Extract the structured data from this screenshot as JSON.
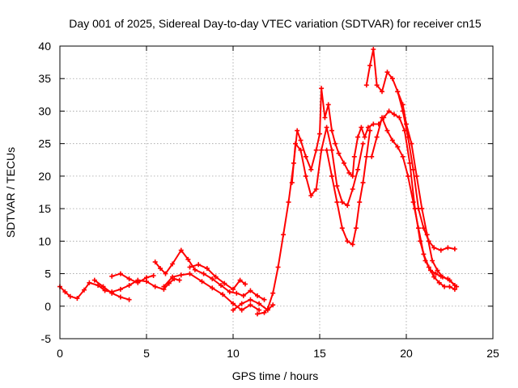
{
  "chart_data": {
    "type": "scatter",
    "title": "Day 001 of 2025, Sidereal Day-to-day VTEC variation (SDTVAR) for receiver cn15",
    "xlabel": "GPS time / hours",
    "ylabel": "SDTVAR / TECUs",
    "xlim": [
      0,
      25
    ],
    "ylim": [
      -5,
      40
    ],
    "xticks": [
      0,
      5,
      10,
      15,
      20,
      25
    ],
    "yticks": [
      -5,
      0,
      5,
      10,
      15,
      20,
      25,
      30,
      35,
      40
    ],
    "grid": true,
    "marker": "plus",
    "color": "#ff0000",
    "series": [
      {
        "name": "trace-a",
        "points": [
          [
            0,
            3
          ],
          [
            0.3,
            2.2
          ],
          [
            0.6,
            1.5
          ],
          [
            1.0,
            1.2
          ],
          [
            1.4,
            2.5
          ],
          [
            1.7,
            3.6
          ],
          [
            2.2,
            3.2
          ],
          [
            2.6,
            2.4
          ],
          [
            3.0,
            2.2
          ],
          [
            3.5,
            2.6
          ],
          [
            4.0,
            3.2
          ],
          [
            4.5,
            4.0
          ],
          [
            5.0,
            3.8
          ],
          [
            5.5,
            3.0
          ],
          [
            6.0,
            2.6
          ],
          [
            6.3,
            3.5
          ],
          [
            6.6,
            4.2
          ],
          [
            6.9,
            4.0
          ]
        ]
      },
      {
        "name": "trace-b",
        "points": [
          [
            2.0,
            4.0
          ],
          [
            2.5,
            3.0
          ],
          [
            3.0,
            2.0
          ],
          [
            3.5,
            1.4
          ],
          [
            4.0,
            1.0
          ]
        ]
      },
      {
        "name": "trace-c",
        "points": [
          [
            3.0,
            4.6
          ],
          [
            3.5,
            5.0
          ],
          [
            4.0,
            4.2
          ],
          [
            4.5,
            3.6
          ],
          [
            5.0,
            4.4
          ],
          [
            5.4,
            4.7
          ]
        ]
      },
      {
        "name": "trace-d",
        "points": [
          [
            5.5,
            6.8
          ],
          [
            5.8,
            5.8
          ],
          [
            6.1,
            5.0
          ],
          [
            6.5,
            6.5
          ],
          [
            7.0,
            8.6
          ],
          [
            7.4,
            7.2
          ],
          [
            7.8,
            5.6
          ],
          [
            8.3,
            5.0
          ],
          [
            8.8,
            4.2
          ],
          [
            9.3,
            3.2
          ],
          [
            9.8,
            2.2
          ],
          [
            10.2,
            2.0
          ],
          [
            10.6,
            1.6
          ],
          [
            11.0,
            2.4
          ],
          [
            11.4,
            1.6
          ],
          [
            11.8,
            1.0
          ]
        ]
      },
      {
        "name": "trace-e",
        "points": [
          [
            7.5,
            6.0
          ],
          [
            8.0,
            6.4
          ],
          [
            8.5,
            5.8
          ],
          [
            9.0,
            4.5
          ],
          [
            9.5,
            3.5
          ],
          [
            10.0,
            2.6
          ],
          [
            10.4,
            4.0
          ],
          [
            10.7,
            3.4
          ]
        ]
      },
      {
        "name": "trace-f",
        "points": [
          [
            6.0,
            3.0
          ],
          [
            6.5,
            4.5
          ],
          [
            7.0,
            4.8
          ],
          [
            7.5,
            5.0
          ],
          [
            8.2,
            3.8
          ],
          [
            8.8,
            2.8
          ],
          [
            9.4,
            1.8
          ],
          [
            10.0,
            0.4
          ],
          [
            10.5,
            -0.6
          ],
          [
            11.0,
            0.2
          ],
          [
            11.5,
            -0.6
          ]
        ]
      },
      {
        "name": "trace-g",
        "points": [
          [
            10.0,
            -0.6
          ],
          [
            10.5,
            0.4
          ],
          [
            11.0,
            1.0
          ],
          [
            11.5,
            0.4
          ],
          [
            12.0,
            -0.6
          ],
          [
            12.3,
            0.2
          ]
        ]
      },
      {
        "name": "trace-h",
        "points": [
          [
            11.4,
            -1.2
          ],
          [
            11.8,
            -1.0
          ],
          [
            12.0,
            -0.4
          ],
          [
            12.3,
            2.0
          ],
          [
            12.6,
            6.0
          ],
          [
            12.9,
            11.0
          ],
          [
            13.2,
            16.0
          ],
          [
            13.5,
            22.0
          ],
          [
            13.7,
            27.0
          ],
          [
            13.9,
            25.5
          ],
          [
            14.2,
            23.0
          ],
          [
            14.5,
            21.0
          ],
          [
            14.8,
            24.0
          ],
          [
            15.0,
            26.5
          ],
          [
            15.1,
            33.5
          ],
          [
            15.3,
            29.0
          ],
          [
            15.5,
            31.0
          ],
          [
            15.7,
            27.0
          ],
          [
            15.9,
            25.0
          ],
          [
            16.1,
            23.5
          ],
          [
            16.4,
            22.0
          ],
          [
            16.7,
            20.5
          ],
          [
            16.9,
            20.0
          ],
          [
            17.0,
            23.0
          ],
          [
            17.2,
            26.0
          ],
          [
            17.4,
            27.5
          ],
          [
            17.6,
            26.0
          ],
          [
            17.8,
            27.5
          ],
          [
            18.1,
            28.0
          ],
          [
            18.4,
            28.0
          ],
          [
            18.7,
            29.0
          ],
          [
            19.0,
            30.0
          ],
          [
            19.3,
            29.5
          ],
          [
            19.6,
            29.0
          ],
          [
            19.9,
            27.0
          ],
          [
            20.2,
            22.0
          ],
          [
            20.5,
            15.0
          ],
          [
            20.8,
            10.0
          ],
          [
            21.1,
            7.0
          ],
          [
            21.4,
            5.5
          ],
          [
            21.7,
            5.0
          ],
          [
            22.0,
            4.6
          ],
          [
            22.4,
            4.2
          ],
          [
            22.8,
            3.2
          ]
        ]
      },
      {
        "name": "trace-i",
        "points": [
          [
            13.4,
            19.0
          ],
          [
            13.6,
            25.0
          ],
          [
            13.9,
            24.0
          ],
          [
            14.2,
            20.0
          ],
          [
            14.5,
            17.0
          ],
          [
            14.8,
            18.0
          ],
          [
            15.1,
            24.0
          ],
          [
            15.4,
            27.5
          ],
          [
            15.7,
            24.0
          ],
          [
            16.0,
            18.5
          ],
          [
            16.3,
            16.0
          ],
          [
            16.6,
            15.5
          ],
          [
            16.9,
            18.0
          ],
          [
            17.2,
            21.0
          ],
          [
            17.5,
            25.0
          ]
        ]
      },
      {
        "name": "trace-j",
        "points": [
          [
            15.4,
            24.0
          ],
          [
            15.7,
            20.0
          ],
          [
            16.0,
            16.0
          ],
          [
            16.3,
            12.0
          ],
          [
            16.6,
            10.0
          ],
          [
            16.9,
            9.5
          ],
          [
            17.1,
            12.0
          ],
          [
            17.3,
            16.0
          ],
          [
            17.5,
            19.0
          ],
          [
            17.7,
            23.0
          ],
          [
            17.9,
            27.0
          ]
        ]
      },
      {
        "name": "trace-k",
        "points": [
          [
            17.7,
            34.0
          ],
          [
            17.9,
            37.0
          ],
          [
            18.1,
            39.5
          ],
          [
            18.3,
            34.0
          ],
          [
            18.6,
            33.0
          ],
          [
            18.9,
            36.0
          ],
          [
            19.2,
            35.0
          ],
          [
            19.5,
            33.0
          ],
          [
            19.8,
            30.0
          ],
          [
            20.1,
            26.0
          ],
          [
            20.4,
            21.0
          ],
          [
            20.7,
            15.0
          ],
          [
            21.0,
            12.0
          ],
          [
            21.3,
            10.0
          ],
          [
            21.6,
            9.0
          ],
          [
            22.0,
            8.6
          ],
          [
            22.4,
            9.0
          ],
          [
            22.8,
            8.8
          ]
        ]
      },
      {
        "name": "trace-l",
        "points": [
          [
            18.0,
            23.0
          ],
          [
            18.3,
            26.0
          ],
          [
            18.6,
            29.0
          ],
          [
            18.9,
            27.0
          ],
          [
            19.2,
            25.5
          ],
          [
            19.5,
            24.5
          ],
          [
            19.8,
            23.0
          ],
          [
            20.1,
            20.0
          ],
          [
            20.4,
            16.0
          ],
          [
            20.7,
            12.0
          ],
          [
            21.0,
            8.0
          ],
          [
            21.3,
            6.0
          ],
          [
            21.6,
            4.5
          ],
          [
            21.9,
            3.6
          ],
          [
            22.2,
            3.0
          ],
          [
            22.5,
            3.0
          ],
          [
            22.8,
            2.6
          ]
        ]
      },
      {
        "name": "trace-m",
        "points": [
          [
            19.5,
            33.0
          ],
          [
            19.8,
            31.0
          ],
          [
            20.0,
            28.0
          ],
          [
            20.3,
            25.0
          ],
          [
            20.6,
            20.0
          ],
          [
            20.9,
            15.0
          ],
          [
            21.2,
            11.0
          ],
          [
            21.5,
            7.0
          ],
          [
            21.8,
            5.5
          ],
          [
            22.1,
            4.5
          ],
          [
            22.5,
            4.0
          ],
          [
            22.9,
            3.0
          ]
        ]
      }
    ]
  }
}
